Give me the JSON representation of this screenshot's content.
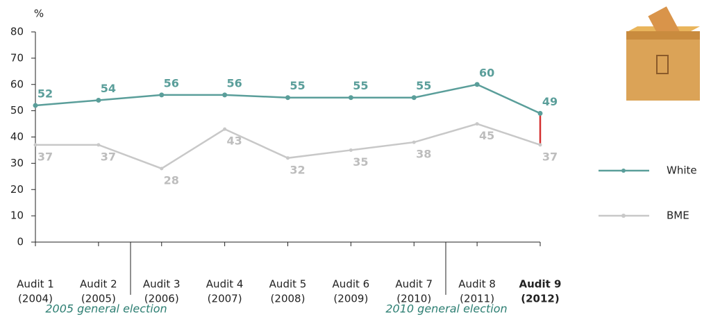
{
  "chart_data": {
    "type": "line",
    "y_label": "%",
    "categories": [
      [
        "Audit 1",
        "(2004)"
      ],
      [
        "Audit 2",
        "(2005)"
      ],
      [
        "Audit 3",
        "(2006)"
      ],
      [
        "Audit 4",
        "(2007)"
      ],
      [
        "Audit 5",
        "(2008)"
      ],
      [
        "Audit 6",
        "(2009)"
      ],
      [
        "Audit 7",
        "(2010)"
      ],
      [
        "Audit 8",
        "(2011)"
      ],
      [
        "Audit 9",
        "(2012)"
      ]
    ],
    "series": [
      {
        "name": "White",
        "color": "#5a9e9a",
        "values": [
          52,
          54,
          56,
          56,
          55,
          55,
          55,
          60,
          49
        ]
      },
      {
        "name": "BME",
        "color": "#c8c8c8",
        "values": [
          37,
          37,
          28,
          43,
          32,
          35,
          38,
          45,
          37
        ]
      }
    ],
    "ylim": [
      0,
      80
    ],
    "yticks": [
      0,
      10,
      20,
      30,
      40,
      50,
      60,
      70,
      80
    ],
    "annotations": [
      "2005 general election",
      "2010 general election"
    ]
  }
}
